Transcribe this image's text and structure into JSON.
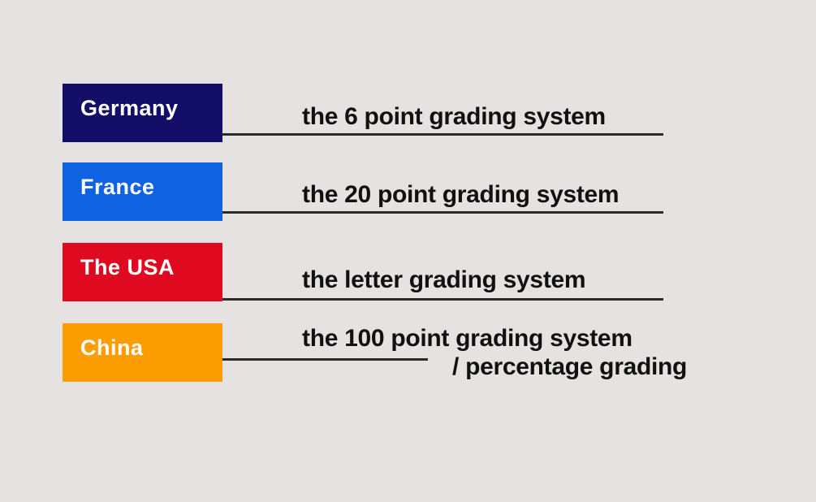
{
  "title": "grading systems by country infographic",
  "colors": {
    "background": "#e5e2e1",
    "connector_line": "#2b2b2b",
    "system_text": "#111111",
    "country_label_text": "#ffffff"
  },
  "rows": [
    {
      "country": "Germany",
      "box_color": "#120d66",
      "system": "the 6 point grading system"
    },
    {
      "country": "France",
      "box_color": "#0f63e2",
      "system": "the 20 point grading system"
    },
    {
      "country": "The USA",
      "box_color": "#e00a20",
      "system": "the letter grading system"
    },
    {
      "country": "China",
      "box_color": "#fc9e03",
      "system": "the 100 point grading system",
      "system_line2": "/ percentage grading"
    }
  ]
}
